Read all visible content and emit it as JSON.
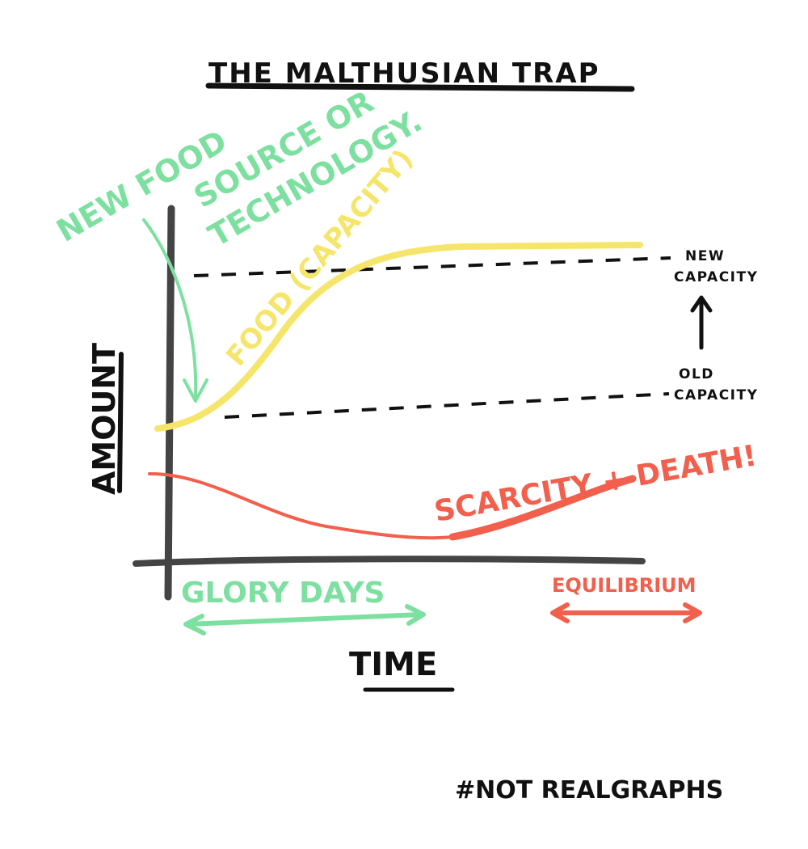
{
  "title": "THE MALTHUSIAN TRAP",
  "y_axis_label": "AMOUNT",
  "x_axis_label": "TIME",
  "annotations": {
    "new_food_line1": "NEW FOOD",
    "new_food_line2": "SOURCE OR",
    "new_food_line3": "TECHNOLOGY.",
    "food_curve": "FOOD (CAPACITY)",
    "new_capacity_line1": "NEW",
    "new_capacity_line2": "CAPACITY",
    "old_capacity_line1": "OLD",
    "old_capacity_line2": "CAPACITY",
    "scarcity": "SCARCITY + DEATH!",
    "glory_days": "GLORY DAYS",
    "equilibrium": "EQUILIBRIUM"
  },
  "hashtag": "#NOT REALGRAPHS",
  "colors": {
    "ink": "#111111",
    "axis": "#444444",
    "food": "#f5e66b",
    "population": "#f25f4c",
    "green": "#7de0a0"
  }
}
